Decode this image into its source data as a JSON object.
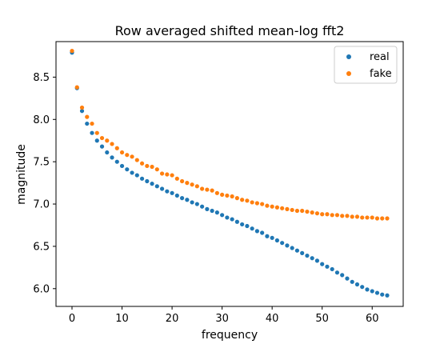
{
  "chart_data": {
    "type": "scatter",
    "title": "Row averaged shifted mean-log fft2",
    "xlabel": "frequency",
    "ylabel": "magnitude",
    "xlim": [
      -3.2,
      66.2
    ],
    "ylim": [
      5.79,
      8.92
    ],
    "xticks": [
      0,
      10,
      20,
      30,
      40,
      50,
      60
    ],
    "xtick_labels": [
      "0",
      "10",
      "20",
      "30",
      "40",
      "50",
      "60"
    ],
    "yticks": [
      6.0,
      6.5,
      7.0,
      7.5,
      8.0,
      8.5
    ],
    "ytick_labels": [
      "6.0",
      "6.5",
      "7.0",
      "7.5",
      "8.0",
      "8.5"
    ],
    "grid": false,
    "legend_position": "top-right",
    "colors": {
      "real": "#1f77b4",
      "fake": "#ff7f0e"
    },
    "series": [
      {
        "name": "real",
        "color": "#1f77b4",
        "x": [
          0,
          1,
          2,
          3,
          4,
          5,
          6,
          7,
          8,
          9,
          10,
          11,
          12,
          13,
          14,
          15,
          16,
          17,
          18,
          19,
          20,
          21,
          22,
          23,
          24,
          25,
          26,
          27,
          28,
          29,
          30,
          31,
          32,
          33,
          34,
          35,
          36,
          37,
          38,
          39,
          40,
          41,
          42,
          43,
          44,
          45,
          46,
          47,
          48,
          49,
          50,
          51,
          52,
          53,
          54,
          55,
          56,
          57,
          58,
          59,
          60,
          61,
          62,
          63
        ],
        "y": [
          8.79,
          8.37,
          8.1,
          7.95,
          7.84,
          7.75,
          7.68,
          7.61,
          7.55,
          7.5,
          7.45,
          7.41,
          7.37,
          7.34,
          7.3,
          7.27,
          7.24,
          7.21,
          7.18,
          7.15,
          7.13,
          7.1,
          7.07,
          7.05,
          7.02,
          7.0,
          6.97,
          6.94,
          6.92,
          6.9,
          6.87,
          6.84,
          6.82,
          6.79,
          6.76,
          6.74,
          6.71,
          6.68,
          6.66,
          6.62,
          6.6,
          6.57,
          6.54,
          6.51,
          6.48,
          6.45,
          6.42,
          6.39,
          6.36,
          6.33,
          6.29,
          6.26,
          6.23,
          6.19,
          6.16,
          6.12,
          6.08,
          6.05,
          6.02,
          5.99,
          5.97,
          5.95,
          5.93,
          5.92
        ]
      },
      {
        "name": "fake",
        "color": "#ff7f0e",
        "x": [
          0,
          1,
          2,
          3,
          4,
          5,
          6,
          7,
          8,
          9,
          10,
          11,
          12,
          13,
          14,
          15,
          16,
          17,
          18,
          19,
          20,
          21,
          22,
          23,
          24,
          25,
          26,
          27,
          28,
          29,
          30,
          31,
          32,
          33,
          34,
          35,
          36,
          37,
          38,
          39,
          40,
          41,
          42,
          43,
          44,
          45,
          46,
          47,
          48,
          49,
          50,
          51,
          52,
          53,
          54,
          55,
          56,
          57,
          58,
          59,
          60,
          61,
          62,
          63
        ],
        "y": [
          8.81,
          8.38,
          8.14,
          8.03,
          7.95,
          7.84,
          7.78,
          7.75,
          7.71,
          7.66,
          7.61,
          7.58,
          7.56,
          7.52,
          7.48,
          7.45,
          7.44,
          7.41,
          7.36,
          7.35,
          7.34,
          7.3,
          7.27,
          7.25,
          7.23,
          7.21,
          7.18,
          7.17,
          7.16,
          7.13,
          7.11,
          7.1,
          7.09,
          7.07,
          7.05,
          7.04,
          7.02,
          7.01,
          7.0,
          6.98,
          6.97,
          6.96,
          6.95,
          6.94,
          6.93,
          6.92,
          6.92,
          6.91,
          6.9,
          6.89,
          6.88,
          6.88,
          6.87,
          6.87,
          6.86,
          6.86,
          6.85,
          6.85,
          6.84,
          6.84,
          6.84,
          6.83,
          6.83,
          6.83
        ]
      }
    ]
  }
}
